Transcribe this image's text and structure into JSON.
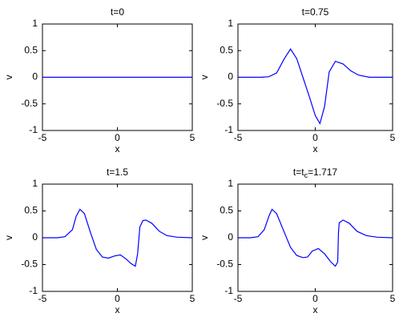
{
  "chart_data": [
    {
      "type": "line",
      "title": "t=0",
      "xlabel": "x",
      "ylabel": "v",
      "x": [
        -5,
        5
      ],
      "series": [
        {
          "color": "#0000ff",
          "values": [
            0,
            0
          ]
        }
      ],
      "xlim": [
        -5,
        5
      ],
      "xticks": [
        -5,
        0,
        5
      ],
      "ylim": [
        -1,
        1
      ],
      "yticks": [
        -1,
        -0.5,
        0,
        0.5,
        1
      ]
    },
    {
      "type": "line",
      "title": "t=0.75",
      "xlabel": "x",
      "ylabel": "v",
      "x": [
        -5,
        -3.5,
        -3,
        -2.5,
        -2,
        -1.6,
        -1.2,
        -0.8,
        -0.4,
        0,
        0.3,
        0.6,
        0.9,
        1.3,
        1.8,
        2.3,
        2.8,
        3.5,
        5
      ],
      "series": [
        {
          "color": "#0000ff",
          "values": [
            0,
            0,
            0.01,
            0.08,
            0.35,
            0.53,
            0.35,
            0,
            -0.35,
            -0.72,
            -0.87,
            -0.55,
            0.1,
            0.3,
            0.25,
            0.12,
            0.04,
            0,
            0
          ]
        }
      ],
      "xlim": [
        -5,
        5
      ],
      "xticks": [
        -5,
        0,
        5
      ],
      "ylim": [
        -1,
        1
      ],
      "yticks": [
        -1,
        -0.5,
        0,
        0.5,
        1
      ]
    },
    {
      "type": "line",
      "title": "t=1.5",
      "xlabel": "x",
      "ylabel": "v",
      "x": [
        -5,
        -4,
        -3.5,
        -3,
        -2.75,
        -2.5,
        -2.2,
        -1.8,
        -1.4,
        -1,
        -0.6,
        -0.2,
        0.2,
        0.6,
        0.9,
        1.2,
        1.35,
        1.5,
        1.7,
        1.9,
        2.3,
        2.8,
        3.3,
        4,
        5
      ],
      "series": [
        {
          "color": "#0000ff",
          "values": [
            0,
            0,
            0.02,
            0.15,
            0.4,
            0.53,
            0.45,
            0.1,
            -0.22,
            -0.36,
            -0.38,
            -0.34,
            -0.32,
            -0.4,
            -0.48,
            -0.53,
            -0.3,
            0.2,
            0.32,
            0.33,
            0.27,
            0.12,
            0.04,
            0.01,
            0
          ]
        }
      ],
      "xlim": [
        -5,
        5
      ],
      "xticks": [
        -5,
        0,
        5
      ],
      "ylim": [
        -1,
        1
      ],
      "yticks": [
        -1,
        -0.5,
        0,
        0.5,
        1
      ]
    },
    {
      "type": "line",
      "title_parts": [
        "t=t",
        "c",
        "=1.717"
      ],
      "xlabel": "x",
      "ylabel": "v",
      "x": [
        -5,
        -4.2,
        -3.7,
        -3.3,
        -3,
        -2.8,
        -2.5,
        -2,
        -1.6,
        -1.2,
        -0.8,
        -0.5,
        -0.2,
        0.2,
        0.6,
        1,
        1.3,
        1.45,
        1.5,
        1.55,
        1.8,
        2.2,
        2.7,
        3.3,
        4,
        5
      ],
      "series": [
        {
          "color": "#0000ff",
          "values": [
            0,
            0,
            0.02,
            0.15,
            0.4,
            0.53,
            0.45,
            0.1,
            -0.18,
            -0.33,
            -0.37,
            -0.36,
            -0.25,
            -0.2,
            -0.3,
            -0.45,
            -0.53,
            -0.45,
            0.1,
            0.28,
            0.33,
            0.27,
            0.12,
            0.04,
            0.01,
            0
          ]
        }
      ],
      "xlim": [
        -5,
        5
      ],
      "xticks": [
        -5,
        0,
        5
      ],
      "ylim": [
        -1,
        1
      ],
      "yticks": [
        -1,
        -0.5,
        0,
        0.5,
        1
      ]
    }
  ]
}
